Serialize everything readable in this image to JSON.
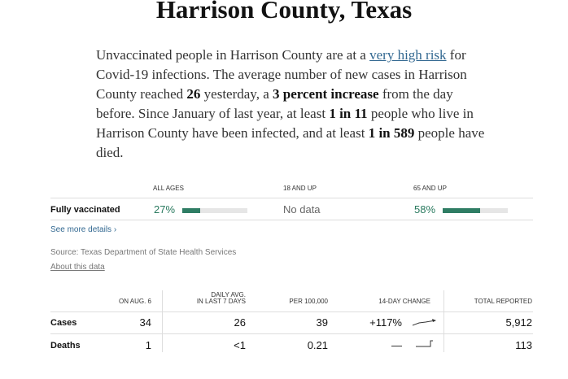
{
  "header": {
    "title": "Harrison County, Texas"
  },
  "summary": {
    "segments": [
      "Unvaccinated people in Harrison County are at a ",
      "very high risk",
      " for Covid-19 infections. The average number of new cases in Harrison County reached ",
      "26",
      " yesterday, a ",
      "3 percent increase",
      " from the day before. Since January of last year, at least ",
      "1 in 11",
      " people who live in Harrison County have been infected, and at least ",
      "1 in 589",
      " people have died."
    ]
  },
  "vaccination": {
    "columns": [
      "ALL AGES",
      "18 AND UP",
      "65 AND UP"
    ],
    "row_label": "Fully vaccinated",
    "cells": [
      {
        "value": 27,
        "label": "27%"
      },
      {
        "label": "No data"
      },
      {
        "value": 58,
        "label": "58%"
      }
    ],
    "details_link": "See more details ›"
  },
  "source": {
    "text": "Source: Texas Department of State Health Services",
    "about_link": "About this data"
  },
  "cases_table": {
    "columns": [
      "ON AUG. 6",
      "DAILY AVG.\nIN LAST 7 DAYS",
      "PER 100,000",
      "14-DAY CHANGE",
      "TOTAL REPORTED"
    ],
    "rows": [
      [
        "Cases",
        "34",
        "26",
        "39",
        "+117%",
        "5,912"
      ],
      [
        "Deaths",
        "1",
        "<1",
        "0.21",
        "—",
        "113"
      ]
    ]
  }
}
